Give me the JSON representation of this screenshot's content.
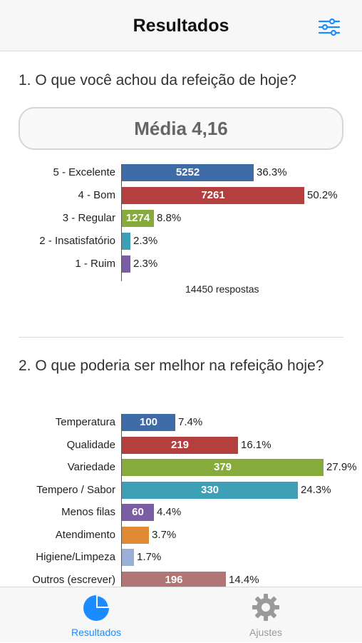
{
  "header": {
    "title": "Resultados",
    "filter_icon": "sliders-icon"
  },
  "q1": {
    "question": "1. O que você achou da refeição de hoje?",
    "average": "Média 4,16",
    "responses": "14450 respostas",
    "bars": [
      {
        "label": "5 - Excelente",
        "value": 5252,
        "value_text": "5252",
        "pct": "36.3%",
        "fraction": 0.363,
        "color": "#3f6ca6"
      },
      {
        "label": "4 - Bom",
        "value": 7261,
        "value_text": "7261",
        "pct": "50.2%",
        "fraction": 0.502,
        "color": "#b33f3f"
      },
      {
        "label": "3 - Regular",
        "value": 1274,
        "value_text": "1274",
        "pct": "8.8%",
        "fraction": 0.088,
        "color": "#86aa3c"
      },
      {
        "label": "2 - Insatisfatório",
        "value": null,
        "value_text": "",
        "pct": "2.3%",
        "fraction": 0.023,
        "color": "#3da0b7"
      },
      {
        "label": "1 - Ruim",
        "value": null,
        "value_text": "",
        "pct": "2.3%",
        "fraction": 0.023,
        "color": "#7a5da2"
      }
    ]
  },
  "q2": {
    "question": "2. O que poderia ser melhor na refeição hoje?",
    "bars": [
      {
        "label": "Temperatura",
        "value": 100,
        "value_text": "100",
        "pct": "7.4%",
        "fraction": 0.074,
        "color": "#3f6ca6"
      },
      {
        "label": "Qualidade",
        "value": 219,
        "value_text": "219",
        "pct": "16.1%",
        "fraction": 0.161,
        "color": "#b33f3f"
      },
      {
        "label": "Variedade",
        "value": 379,
        "value_text": "379",
        "pct": "27.9%",
        "fraction": 0.279,
        "color": "#86aa3c"
      },
      {
        "label": "Tempero / Sabor",
        "value": 330,
        "value_text": "330",
        "pct": "24.3%",
        "fraction": 0.243,
        "color": "#3da0b7"
      },
      {
        "label": "Menos filas",
        "value": 60,
        "value_text": "60",
        "pct": "4.4%",
        "fraction": 0.044,
        "color": "#7a5da2"
      },
      {
        "label": "Atendimento",
        "value": null,
        "value_text": "",
        "pct": "3.7%",
        "fraction": 0.037,
        "color": "#e08a36"
      },
      {
        "label": "Higiene/Limpeza",
        "value": null,
        "value_text": "",
        "pct": "1.7%",
        "fraction": 0.017,
        "color": "#9ab0d6"
      },
      {
        "label": "Outros (escrever)",
        "value": 196,
        "value_text": "196",
        "pct": "14.4%",
        "fraction": 0.144,
        "color": "#b07575"
      }
    ]
  },
  "tabs": [
    {
      "label": "Resultados",
      "icon": "pie-chart-icon",
      "active": true,
      "color": "#1a8cff"
    },
    {
      "label": "Ajustes",
      "icon": "gear-icon",
      "active": false,
      "color": "#9a9a9a"
    }
  ]
}
